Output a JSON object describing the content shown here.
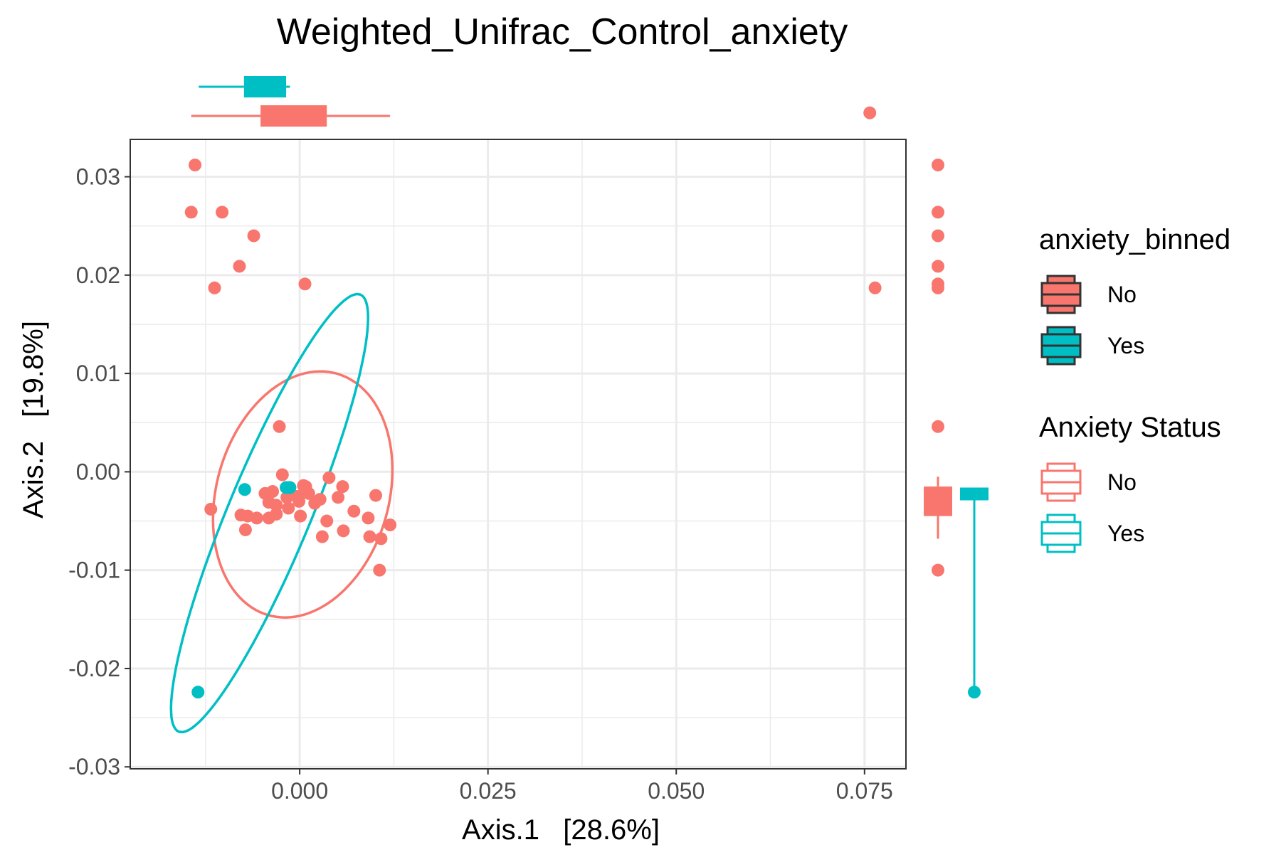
{
  "chart_data": {
    "type": "scatter",
    "title": "Weighted_Unifrac_Control_anxiety",
    "xlabel": "Axis.1   [28.6%]",
    "ylabel": "Axis.2   [19.8%]",
    "xlim": [
      -0.0225,
      0.0805
    ],
    "ylim": [
      -0.0302,
      0.0338
    ],
    "x_ticks": [
      {
        "value": 0.0,
        "label": "0.000"
      },
      {
        "value": 0.025,
        "label": "0.025"
      },
      {
        "value": 0.05,
        "label": "0.050"
      },
      {
        "value": 0.075,
        "label": "0.075"
      }
    ],
    "y_ticks": [
      {
        "value": 0.03,
        "label": "0.03"
      },
      {
        "value": 0.02,
        "label": "0.02"
      },
      {
        "value": 0.01,
        "label": "0.01"
      },
      {
        "value": 0.0,
        "label": "0.00"
      },
      {
        "value": -0.01,
        "label": "-0.01"
      },
      {
        "value": -0.02,
        "label": "-0.02"
      },
      {
        "value": -0.03,
        "label": "-0.03"
      }
    ],
    "grid": true,
    "legend_position": "right",
    "colors": {
      "No": "#F8766D",
      "Yes": "#00BFC4"
    },
    "legends": [
      {
        "title": "anxiety_binned",
        "style": "filled",
        "entries": [
          "No",
          "Yes"
        ]
      },
      {
        "title": "Anxiety Status",
        "style": "outline",
        "entries": [
          "No",
          "Yes"
        ]
      }
    ],
    "series": [
      {
        "name": "No",
        "color": "#F8766D",
        "points": [
          [
            -0.0139,
            0.0312
          ],
          [
            -0.0144,
            0.0264
          ],
          [
            -0.0103,
            0.0264
          ],
          [
            -0.0061,
            0.024
          ],
          [
            -0.008,
            0.0209
          ],
          [
            -0.0113,
            0.0187
          ],
          [
            0.0007,
            0.0191
          ],
          [
            0.0764,
            0.0187
          ],
          [
            -0.0027,
            0.0046
          ],
          [
            -0.0023,
            -0.0003
          ],
          [
            -0.0013,
            -0.0016
          ],
          [
            0.0005,
            -0.0014
          ],
          [
            0.0008,
            -0.0015
          ],
          [
            0.0039,
            -0.0006
          ],
          [
            0.0057,
            -0.0015
          ],
          [
            -0.0046,
            -0.0022
          ],
          [
            -0.0036,
            -0.002
          ],
          [
            -0.0017,
            -0.0026
          ],
          [
            -0.0003,
            -0.0025
          ],
          [
            0.0012,
            -0.0022
          ],
          [
            0.0027,
            -0.0028
          ],
          [
            0.0051,
            -0.0026
          ],
          [
            0.002,
            -0.0032
          ],
          [
            -0.0041,
            -0.0031
          ],
          [
            -0.0031,
            -0.0034
          ],
          [
            -0.0015,
            -0.0037
          ],
          [
            -0.0001,
            -0.003
          ],
          [
            0.0101,
            -0.0024
          ],
          [
            -0.0118,
            -0.0038
          ],
          [
            -0.0078,
            -0.0044
          ],
          [
            -0.0069,
            -0.0045
          ],
          [
            -0.0057,
            -0.0047
          ],
          [
            -0.0041,
            -0.0047
          ],
          [
            -0.0031,
            -0.0043
          ],
          [
            0.0001,
            -0.0045
          ],
          [
            0.0036,
            -0.005
          ],
          [
            0.0072,
            -0.004
          ],
          [
            0.0091,
            -0.0047
          ],
          [
            0.012,
            -0.0054
          ],
          [
            -0.0072,
            -0.0059
          ],
          [
            0.0058,
            -0.006
          ],
          [
            0.003,
            -0.0066
          ],
          [
            0.0093,
            -0.0066
          ],
          [
            0.0108,
            -0.0068
          ],
          [
            0.0106,
            -0.01
          ],
          [
            0.0757,
            0.0365
          ]
        ]
      },
      {
        "name": "Yes",
        "color": "#00BFC4",
        "points": [
          [
            -0.0073,
            -0.0018
          ],
          [
            -0.0018,
            -0.0016
          ],
          [
            -0.0013,
            -0.0016
          ],
          [
            -0.0135,
            -0.0224
          ]
        ]
      }
    ],
    "ellipses": [
      {
        "group": "No",
        "center": [
          0.0004,
          -0.0023
        ],
        "semi_axes": [
          0.0134,
          0.0109
        ],
        "angle_deg": 52
      },
      {
        "group": "Yes",
        "center": [
          -0.004,
          -0.0042
        ],
        "semi_axes": [
          0.0253,
          0.0052
        ],
        "angle_deg": 61
      }
    ],
    "marginal_boxplots": {
      "x": [
        {
          "group": "Yes",
          "min": -0.0134,
          "q1": -0.0074,
          "median": -0.0036,
          "q3": -0.0018,
          "max": -0.0013
        },
        {
          "group": "No",
          "min": -0.0144,
          "q1": -0.0052,
          "median": -0.0003,
          "q3": 0.0036,
          "max": 0.012
        }
      ],
      "y": [
        {
          "group": "No",
          "min": -0.0068,
          "q1": -0.0045,
          "median": -0.0025,
          "q3": -0.0015,
          "max": -0.0005
        },
        {
          "group": "Yes",
          "min": -0.0224,
          "q1": -0.0029,
          "median": -0.0024,
          "q3": -0.0016,
          "max": -0.0016
        }
      ]
    }
  }
}
